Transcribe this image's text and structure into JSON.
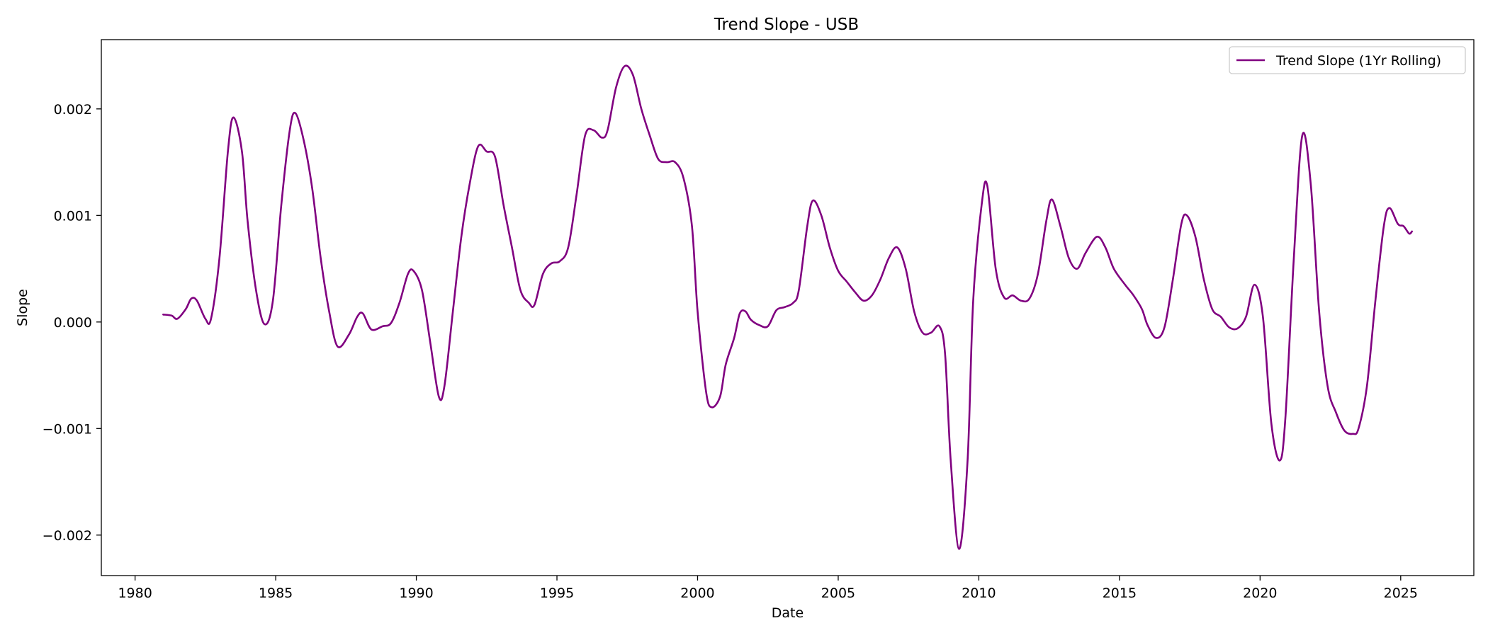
{
  "chart_data": {
    "type": "line",
    "title": "Trend Slope - USB",
    "xlabel": "Date",
    "ylabel": "Slope",
    "xlim": [
      1978.8,
      2027.6
    ],
    "ylim": [
      -0.00238,
      0.00265
    ],
    "x_ticks": [
      1980,
      1985,
      1990,
      1995,
      2000,
      2005,
      2010,
      2015,
      2020,
      2025
    ],
    "x_tick_labels": [
      "1980",
      "1985",
      "1990",
      "1995",
      "2000",
      "2005",
      "2010",
      "2015",
      "2020",
      "2025"
    ],
    "y_ticks": [
      -0.002,
      -0.001,
      0.0,
      0.001,
      0.002
    ],
    "y_tick_labels": [
      "−0.002",
      "−0.001",
      "0.000",
      "0.001",
      "0.002"
    ],
    "grid": false,
    "legend_position": "upper right",
    "series": [
      {
        "name": "Trend Slope (1Yr Rolling)",
        "color": "#800080",
        "points": [
          [
            1981.0,
            7e-05
          ],
          [
            1981.3,
            6e-05
          ],
          [
            1981.5,
            3e-05
          ],
          [
            1981.8,
            0.00012
          ],
          [
            1982.0,
            0.00022
          ],
          [
            1982.2,
            0.0002
          ],
          [
            1982.5,
            3e-05
          ],
          [
            1982.7,
            3e-05
          ],
          [
            1983.0,
            0.0006
          ],
          [
            1983.3,
            0.0016
          ],
          [
            1983.5,
            0.00192
          ],
          [
            1983.8,
            0.0016
          ],
          [
            1984.0,
            0.00095
          ],
          [
            1984.3,
            0.0003
          ],
          [
            1984.6,
            -2e-05
          ],
          [
            1984.9,
            0.0002
          ],
          [
            1985.2,
            0.0011
          ],
          [
            1985.5,
            0.0018
          ],
          [
            1985.7,
            0.00196
          ],
          [
            1986.0,
            0.0017
          ],
          [
            1986.3,
            0.00125
          ],
          [
            1986.6,
            0.0006
          ],
          [
            1986.9,
            0.0001
          ],
          [
            1987.2,
            -0.00023
          ],
          [
            1987.6,
            -0.00012
          ],
          [
            1987.9,
            5e-05
          ],
          [
            1988.1,
            8e-05
          ],
          [
            1988.4,
            -7e-05
          ],
          [
            1988.8,
            -4e-05
          ],
          [
            1989.1,
            -1e-05
          ],
          [
            1989.4,
            0.00018
          ],
          [
            1989.7,
            0.00045
          ],
          [
            1989.9,
            0.00048
          ],
          [
            1990.2,
            0.0003
          ],
          [
            1990.5,
            -0.0002
          ],
          [
            1990.8,
            -0.0007
          ],
          [
            1991.0,
            -0.0006
          ],
          [
            1991.3,
            0.0001
          ],
          [
            1991.6,
            0.0008
          ],
          [
            1991.9,
            0.0013
          ],
          [
            1992.2,
            0.00165
          ],
          [
            1992.5,
            0.0016
          ],
          [
            1992.8,
            0.00155
          ],
          [
            1993.1,
            0.0011
          ],
          [
            1993.4,
            0.0007
          ],
          [
            1993.7,
            0.0003
          ],
          [
            1994.0,
            0.00018
          ],
          [
            1994.2,
            0.00016
          ],
          [
            1994.5,
            0.00045
          ],
          [
            1994.8,
            0.00055
          ],
          [
            1995.1,
            0.00057
          ],
          [
            1995.4,
            0.0007
          ],
          [
            1995.7,
            0.0012
          ],
          [
            1996.0,
            0.00175
          ],
          [
            1996.3,
            0.0018
          ],
          [
            1996.6,
            0.00173
          ],
          [
            1996.8,
            0.0018
          ],
          [
            1997.1,
            0.0022
          ],
          [
            1997.4,
            0.0024
          ],
          [
            1997.7,
            0.00232
          ],
          [
            1998.0,
            0.002
          ],
          [
            1998.3,
            0.00175
          ],
          [
            1998.6,
            0.00153
          ],
          [
            1998.9,
            0.0015
          ],
          [
            1999.2,
            0.0015
          ],
          [
            1999.5,
            0.00135
          ],
          [
            1999.8,
            0.0009
          ],
          [
            2000.0,
            0.0001
          ],
          [
            2000.3,
            -0.00065
          ],
          [
            2000.5,
            -0.0008
          ],
          [
            2000.8,
            -0.0007
          ],
          [
            2001.0,
            -0.0004
          ],
          [
            2001.3,
            -0.00015
          ],
          [
            2001.5,
            8e-05
          ],
          [
            2001.7,
            0.0001
          ],
          [
            2001.9,
            2e-05
          ],
          [
            2002.2,
            -3e-05
          ],
          [
            2002.5,
            -4e-05
          ],
          [
            2002.8,
            0.00011
          ],
          [
            2003.1,
            0.00014
          ],
          [
            2003.4,
            0.00018
          ],
          [
            2003.6,
            0.0003
          ],
          [
            2003.9,
            0.0009
          ],
          [
            2004.1,
            0.00114
          ],
          [
            2004.4,
            0.001
          ],
          [
            2004.7,
            0.0007
          ],
          [
            2005.0,
            0.00048
          ],
          [
            2005.3,
            0.00038
          ],
          [
            2005.6,
            0.00028
          ],
          [
            2005.9,
            0.0002
          ],
          [
            2006.2,
            0.00025
          ],
          [
            2006.5,
            0.0004
          ],
          [
            2006.8,
            0.0006
          ],
          [
            2007.1,
            0.0007
          ],
          [
            2007.4,
            0.0005
          ],
          [
            2007.7,
            0.0001
          ],
          [
            2008.0,
            -0.0001
          ],
          [
            2008.3,
            -0.0001
          ],
          [
            2008.6,
            -4e-05
          ],
          [
            2008.8,
            -0.0003
          ],
          [
            2009.0,
            -0.0013
          ],
          [
            2009.3,
            -0.00213
          ],
          [
            2009.6,
            -0.0013
          ],
          [
            2009.8,
            0.0002
          ],
          [
            2010.1,
            0.0011
          ],
          [
            2010.3,
            0.00128
          ],
          [
            2010.6,
            0.0005
          ],
          [
            2010.9,
            0.00023
          ],
          [
            2011.2,
            0.00025
          ],
          [
            2011.5,
            0.0002
          ],
          [
            2011.8,
            0.00022
          ],
          [
            2012.1,
            0.00045
          ],
          [
            2012.4,
            0.00095
          ],
          [
            2012.6,
            0.00115
          ],
          [
            2012.9,
            0.0009
          ],
          [
            2013.2,
            0.0006
          ],
          [
            2013.5,
            0.0005
          ],
          [
            2013.8,
            0.00065
          ],
          [
            2014.2,
            0.0008
          ],
          [
            2014.5,
            0.0007
          ],
          [
            2014.8,
            0.0005
          ],
          [
            2015.2,
            0.00035
          ],
          [
            2015.5,
            0.00025
          ],
          [
            2015.8,
            0.00012
          ],
          [
            2016.0,
            -3e-05
          ],
          [
            2016.3,
            -0.00015
          ],
          [
            2016.6,
            -5e-05
          ],
          [
            2016.9,
            0.0004
          ],
          [
            2017.2,
            0.00092
          ],
          [
            2017.4,
            0.001
          ],
          [
            2017.7,
            0.0008
          ],
          [
            2018.0,
            0.0004
          ],
          [
            2018.3,
            0.00012
          ],
          [
            2018.6,
            5e-05
          ],
          [
            2018.9,
            -5e-05
          ],
          [
            2019.2,
            -6e-05
          ],
          [
            2019.5,
            5e-05
          ],
          [
            2019.8,
            0.00035
          ],
          [
            2020.1,
            5e-05
          ],
          [
            2020.4,
            -0.00095
          ],
          [
            2020.7,
            -0.0013
          ],
          [
            2020.9,
            -0.0009
          ],
          [
            2021.2,
            0.0006
          ],
          [
            2021.5,
            0.00175
          ],
          [
            2021.8,
            0.0013
          ],
          [
            2022.1,
            0.0001
          ],
          [
            2022.4,
            -0.0006
          ],
          [
            2022.7,
            -0.00085
          ],
          [
            2023.0,
            -0.00102
          ],
          [
            2023.3,
            -0.00105
          ],
          [
            2023.5,
            -0.001
          ],
          [
            2023.8,
            -0.0006
          ],
          [
            2024.1,
            0.0002
          ],
          [
            2024.4,
            0.0009
          ],
          [
            2024.6,
            0.00107
          ],
          [
            2024.9,
            0.00092
          ],
          [
            2025.1,
            0.0009
          ],
          [
            2025.3,
            0.00083
          ],
          [
            2025.4,
            0.00085
          ]
        ]
      }
    ]
  }
}
